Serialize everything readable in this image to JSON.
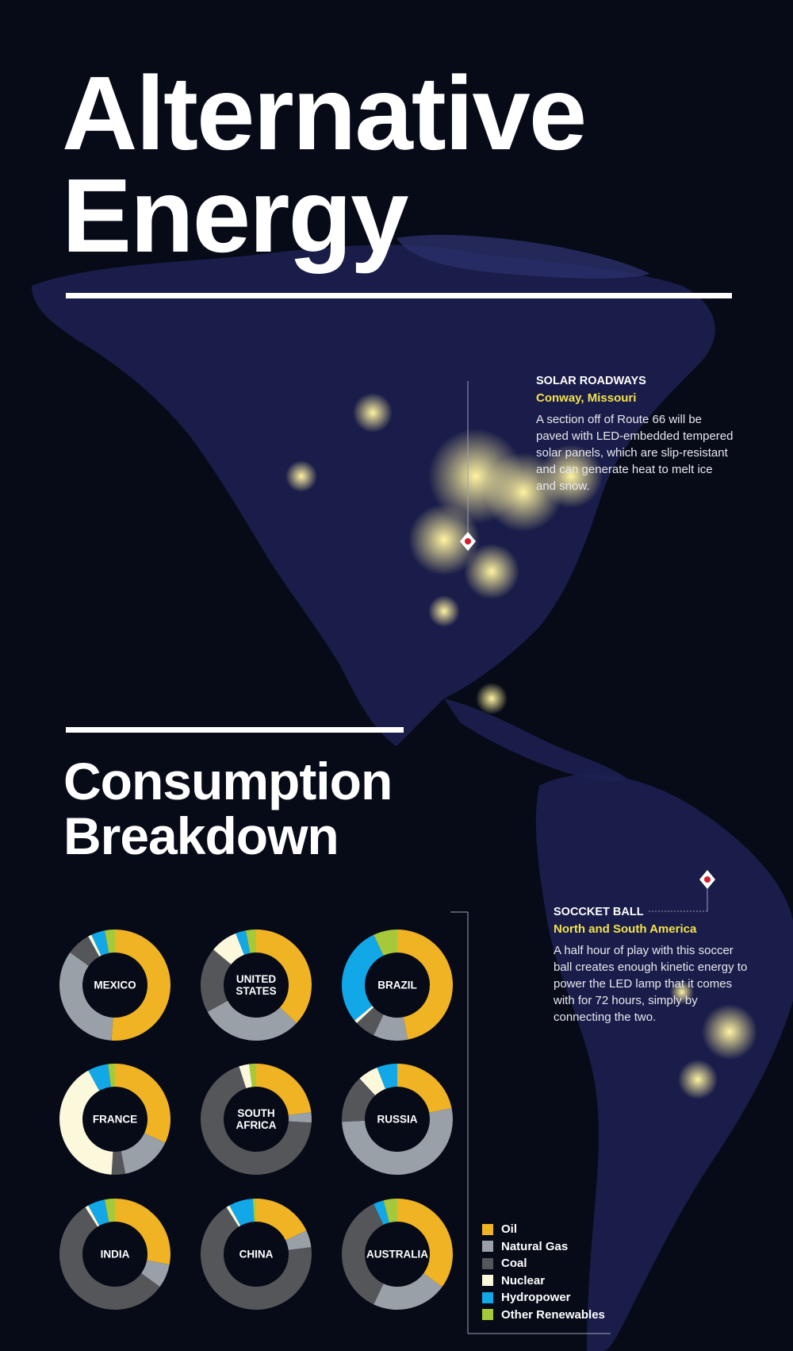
{
  "title": {
    "line1": "Alternative",
    "line2": "Energy"
  },
  "subtitle": {
    "line1": "Consumption",
    "line2": "Breakdown"
  },
  "callouts": {
    "solar": {
      "heading": "SOLAR ROADWAYS",
      "location": "Conway, Missouri",
      "body": "A section off of Route 66 will be paved with LED-embedded tempered solar panels, which are slip-resistant and can generate heat to melt ice and snow."
    },
    "ball": {
      "heading": "SOCCKET BALL",
      "location": "North and South America",
      "body": "A half hour of play with this soccer ball creates enough kinetic energy to power the LED lamp that it comes with for 72 hours, simply by connecting the two."
    }
  },
  "colors": {
    "Oil": "#f0b323",
    "Natural Gas": "#9aa0a8",
    "Coal": "#55565a",
    "Nuclear": "#fbf8dc",
    "Hydropower": "#12a8e8",
    "Other Renewables": "#a6c93a",
    "accent_yellow": "#f2e24b",
    "background": "#070b18"
  },
  "legend": [
    "Oil",
    "Natural Gas",
    "Coal",
    "Nuclear",
    "Hydropower",
    "Other Renewables"
  ],
  "chart_data": {
    "type": "pie",
    "variant": "donut",
    "categories": [
      "Oil",
      "Natural Gas",
      "Coal",
      "Nuclear",
      "Hydropower",
      "Other Renewables"
    ],
    "charts": [
      {
        "label": "MEXICO",
        "values": [
          51,
          34,
          7,
          1,
          4,
          3
        ]
      },
      {
        "label": "UNITED STATES",
        "values": [
          37,
          30,
          19,
          8,
          3,
          3
        ]
      },
      {
        "label": "BRAZIL",
        "values": [
          47,
          10,
          6,
          1,
          29,
          7
        ]
      },
      {
        "label": "FRANCE",
        "values": [
          32,
          15,
          4,
          41,
          6,
          2
        ]
      },
      {
        "label": "SOUTH AFRICA",
        "values": [
          23,
          3,
          69,
          3,
          0,
          2
        ]
      },
      {
        "label": "RUSSIA",
        "values": [
          22,
          53,
          14,
          6,
          6,
          0
        ]
      },
      {
        "label": "INDIA",
        "values": [
          28,
          7,
          56,
          1,
          5,
          3
        ]
      },
      {
        "label": "CHINA",
        "values": [
          18,
          5,
          68,
          1,
          7,
          1
        ]
      },
      {
        "label": "AUSTRALIA",
        "values": [
          35,
          22,
          36,
          0,
          3,
          4
        ]
      }
    ]
  }
}
